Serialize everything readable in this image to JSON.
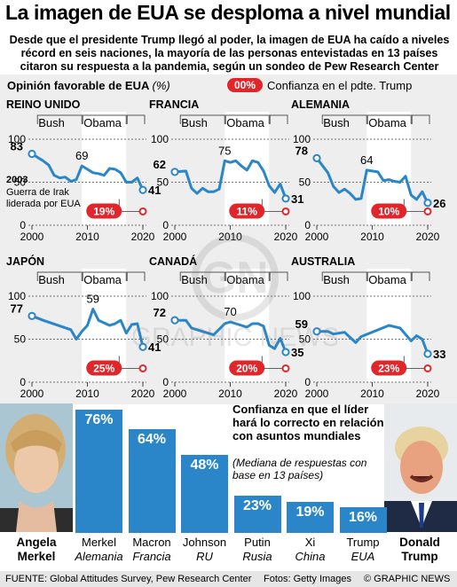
{
  "title": "La imagen de EUA se desploma a nivel mundial",
  "subtitle": "Desde que el presidente Trump llegó al poder, la imagen de EUA ha caído a niveles récord en seis naciones, la mayoría de las personas entevistadas en 13 países citaron su respuesta a la pandemia, según un sondeo de Pew Research Center",
  "legend": {
    "title": "Opinión favorable de EUA",
    "unit": "(%)",
    "badge": "00%",
    "badge_text": "Confianza en el pdte. Trump"
  },
  "colors": {
    "line": "#2a86c8",
    "accent": "#e0262b",
    "obama_band": "#ffffff",
    "panel_bg": "#eeeeee"
  },
  "chart_data": [
    {
      "type": "line",
      "title": "REINO UNIDO",
      "x": [
        2000,
        2002,
        2003,
        2004,
        2005,
        2006,
        2007,
        2008,
        2009,
        2010,
        2011,
        2012,
        2013,
        2014,
        2015,
        2016,
        2017,
        2018,
        2019,
        2020
      ],
      "values": [
        83,
        75,
        70,
        58,
        55,
        56,
        51,
        53,
        69,
        65,
        61,
        60,
        58,
        66,
        65,
        61,
        50,
        50,
        55,
        41
      ],
      "ylim": [
        0,
        100
      ],
      "yticks": [
        "100",
        "50",
        "0"
      ],
      "xticks": [
        "2000",
        "2010",
        "2020"
      ],
      "labels": {
        "first": "83",
        "mid": "69",
        "last": "41"
      },
      "annotation": "Guerra de Irak liderada por EUA",
      "annotation_year": "2003",
      "trump_confidence": "19%",
      "presidents": [
        "Bush",
        "Obama"
      ]
    },
    {
      "type": "line",
      "title": "FRANCIA",
      "x": [
        2000,
        2002,
        2003,
        2004,
        2005,
        2006,
        2007,
        2008,
        2009,
        2010,
        2011,
        2012,
        2013,
        2014,
        2015,
        2016,
        2017,
        2018,
        2019,
        2020
      ],
      "values": [
        62,
        63,
        43,
        37,
        43,
        39,
        39,
        42,
        75,
        73,
        75,
        69,
        64,
        75,
        73,
        63,
        46,
        38,
        48,
        31
      ],
      "ylim": [
        0,
        100
      ],
      "yticks": [
        "100",
        "50",
        "0"
      ],
      "xticks": [
        "2000",
        "2010",
        "2020"
      ],
      "labels": {
        "first": "62",
        "mid": "75",
        "last": "31"
      },
      "trump_confidence": "11%",
      "presidents": [
        "Bush",
        "Obama"
      ]
    },
    {
      "type": "line",
      "title": "ALEMANIA",
      "x": [
        2000,
        2002,
        2003,
        2004,
        2005,
        2006,
        2007,
        2008,
        2009,
        2010,
        2011,
        2012,
        2013,
        2014,
        2015,
        2016,
        2017,
        2018,
        2019,
        2020
      ],
      "values": [
        78,
        61,
        45,
        38,
        42,
        37,
        30,
        31,
        64,
        63,
        62,
        52,
        53,
        51,
        50,
        57,
        35,
        30,
        39,
        26
      ],
      "ylim": [
        0,
        100
      ],
      "yticks": [
        "100",
        "50",
        "0"
      ],
      "xticks": [
        "2000",
        "2010",
        "2020"
      ],
      "labels": {
        "first": "78",
        "mid": "64",
        "last": "26"
      },
      "trump_confidence": "10%",
      "presidents": [
        "Bush",
        "Obama"
      ]
    },
    {
      "type": "line",
      "title": "JAPÓN",
      "x": [
        2000,
        2002,
        2007,
        2008,
        2009,
        2010,
        2011,
        2012,
        2013,
        2014,
        2015,
        2016,
        2017,
        2018,
        2019,
        2020
      ],
      "values": [
        77,
        72,
        61,
        50,
        59,
        66,
        85,
        72,
        69,
        66,
        68,
        72,
        57,
        67,
        68,
        41
      ],
      "ylim": [
        0,
        100
      ],
      "yticks": [
        "100",
        "50",
        "0"
      ],
      "xticks": [
        "2000",
        "2010",
        "2020"
      ],
      "labels": {
        "first": "77",
        "mid": "59",
        "last": "41"
      },
      "trump_confidence": "25%",
      "presidents": [
        "Bush",
        "Obama"
      ]
    },
    {
      "type": "line",
      "title": "CANADÁ",
      "x": [
        2000,
        2002,
        2003,
        2005,
        2007,
        2009,
        2010,
        2011,
        2013,
        2014,
        2015,
        2016,
        2017,
        2018,
        2019,
        2020
      ],
      "values": [
        72,
        72,
        63,
        59,
        55,
        68,
        70,
        68,
        64,
        68,
        68,
        65,
        43,
        39,
        51,
        35
      ],
      "ylim": [
        0,
        100
      ],
      "yticks": [
        "100",
        "50",
        "0"
      ],
      "xticks": [
        "2000",
        "2010",
        "2020"
      ],
      "labels": {
        "first": "72",
        "mid": "70",
        "last": "35"
      },
      "trump_confidence": "20%",
      "presidents": [
        "Bush",
        "Obama"
      ]
    },
    {
      "type": "line",
      "title": "AUSTRALIA",
      "x": [
        2000,
        2002,
        2003,
        2005,
        2007,
        2008,
        2013,
        2015,
        2017,
        2018,
        2019,
        2020
      ],
      "values": [
        59,
        59,
        56,
        58,
        46,
        53,
        66,
        63,
        48,
        54,
        50,
        33
      ],
      "ylim": [
        0,
        100
      ],
      "yticks": [
        "100",
        "50",
        "0"
      ],
      "xticks": [
        "2000",
        "2010",
        "2020"
      ],
      "labels": {
        "first": "59",
        "mid": "53",
        "last": "33"
      },
      "trump_confidence": "23%",
      "presidents": [
        "Bush",
        "Obama"
      ]
    },
    {
      "type": "bar",
      "title": "Confianza en que el líder hará lo correcto en relación con asuntos mundiales",
      "note": "(Mediana de respuestas con base en 13 países)",
      "categories": [
        "Merkel",
        "Macron",
        "Johnson",
        "Putin",
        "Xi",
        "Trump"
      ],
      "countries": [
        "Alemania",
        "Francia",
        "RU",
        "Rusia",
        "China",
        "EUA"
      ],
      "values": [
        76,
        64,
        48,
        23,
        19,
        16
      ],
      "value_labels": [
        "76%",
        "64%",
        "48%",
        "23%",
        "19%",
        "16%"
      ],
      "ylim": [
        0,
        80
      ]
    }
  ],
  "people": {
    "left_name": "Angela Merkel",
    "right_name": "Donald Trump"
  },
  "footer": {
    "source": "FUENTE: Global Attitudes Survey, Pew Research Center",
    "photos": "Fotos: Getty Images",
    "credit": "© GRAPHIC NEWS"
  },
  "watermark": "GRAPHIC NEWS"
}
